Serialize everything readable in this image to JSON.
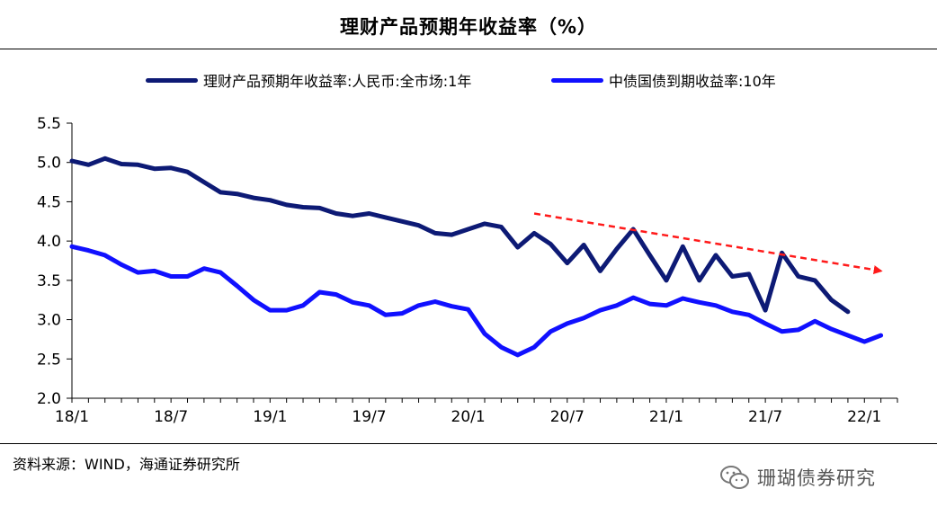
{
  "title": "理财产品预期年收益率（%）",
  "source": "资料来源：WIND，海通证券研究所",
  "watermark": {
    "text": "珊瑚债券研究",
    "icon": "wechat-icon"
  },
  "colors": {
    "series1": "#0d1a75",
    "series2": "#1010ff",
    "trend": "#ff1a1a"
  },
  "chart_data": {
    "type": "line",
    "title": "理财产品预期年收益率（%）",
    "ylim": [
      2.0,
      5.5
    ],
    "yticks": [
      "2.0",
      "2.5",
      "3.0",
      "3.5",
      "4.0",
      "4.5",
      "5.0",
      "5.5"
    ],
    "xlim": [
      "2018-01",
      "2022-03"
    ],
    "xtick_labels": [
      "18/1",
      "18/7",
      "19/1",
      "19/7",
      "20/1",
      "20/7",
      "21/1",
      "21/7",
      "22/1"
    ],
    "grid": false,
    "legend_position": "top",
    "series": [
      {
        "name": "理财产品预期年收益率:人民币:全市场:1年",
        "color": "#0d1a75",
        "points": [
          [
            "2018-01",
            5.02
          ],
          [
            "2018-02",
            4.97
          ],
          [
            "2018-03",
            5.05
          ],
          [
            "2018-04",
            4.98
          ],
          [
            "2018-05",
            4.97
          ],
          [
            "2018-06",
            4.92
          ],
          [
            "2018-07",
            4.93
          ],
          [
            "2018-08",
            4.88
          ],
          [
            "2018-09",
            4.75
          ],
          [
            "2018-10",
            4.62
          ],
          [
            "2018-11",
            4.6
          ],
          [
            "2018-12",
            4.55
          ],
          [
            "2019-01",
            4.52
          ],
          [
            "2019-02",
            4.46
          ],
          [
            "2019-03",
            4.43
          ],
          [
            "2019-04",
            4.42
          ],
          [
            "2019-05",
            4.35
          ],
          [
            "2019-06",
            4.32
          ],
          [
            "2019-07",
            4.35
          ],
          [
            "2019-08",
            4.3
          ],
          [
            "2019-09",
            4.25
          ],
          [
            "2019-10",
            4.2
          ],
          [
            "2019-11",
            4.1
          ],
          [
            "2019-12",
            4.08
          ],
          [
            "2020-01",
            4.15
          ],
          [
            "2020-02",
            4.22
          ],
          [
            "2020-03",
            4.18
          ],
          [
            "2020-04",
            3.92
          ],
          [
            "2020-05",
            4.1
          ],
          [
            "2020-06",
            3.96
          ],
          [
            "2020-07",
            3.72
          ],
          [
            "2020-08",
            3.95
          ],
          [
            "2020-09",
            3.62
          ],
          [
            "2020-10",
            3.9
          ],
          [
            "2020-11",
            4.15
          ],
          [
            "2020-12",
            3.82
          ],
          [
            "2021-01",
            3.5
          ],
          [
            "2021-02",
            3.93
          ],
          [
            "2021-03",
            3.5
          ],
          [
            "2021-04",
            3.82
          ],
          [
            "2021-05",
            3.55
          ],
          [
            "2021-06",
            3.58
          ],
          [
            "2021-07",
            3.12
          ],
          [
            "2021-08",
            3.85
          ],
          [
            "2021-09",
            3.55
          ],
          [
            "2021-10",
            3.5
          ],
          [
            "2021-11",
            3.25
          ],
          [
            "2021-12",
            3.1
          ]
        ]
      },
      {
        "name": "中债国债到期收益率:10年",
        "color": "#1010ff",
        "points": [
          [
            "2018-01",
            3.93
          ],
          [
            "2018-02",
            3.88
          ],
          [
            "2018-03",
            3.82
          ],
          [
            "2018-04",
            3.7
          ],
          [
            "2018-05",
            3.6
          ],
          [
            "2018-06",
            3.62
          ],
          [
            "2018-07",
            3.55
          ],
          [
            "2018-08",
            3.55
          ],
          [
            "2018-09",
            3.65
          ],
          [
            "2018-10",
            3.6
          ],
          [
            "2018-11",
            3.43
          ],
          [
            "2018-12",
            3.25
          ],
          [
            "2019-01",
            3.12
          ],
          [
            "2019-02",
            3.12
          ],
          [
            "2019-03",
            3.18
          ],
          [
            "2019-04",
            3.35
          ],
          [
            "2019-05",
            3.32
          ],
          [
            "2019-06",
            3.22
          ],
          [
            "2019-07",
            3.18
          ],
          [
            "2019-08",
            3.06
          ],
          [
            "2019-09",
            3.08
          ],
          [
            "2019-10",
            3.18
          ],
          [
            "2019-11",
            3.23
          ],
          [
            "2019-12",
            3.17
          ],
          [
            "2020-01",
            3.13
          ],
          [
            "2020-02",
            2.82
          ],
          [
            "2020-03",
            2.65
          ],
          [
            "2020-04",
            2.55
          ],
          [
            "2020-05",
            2.65
          ],
          [
            "2020-06",
            2.85
          ],
          [
            "2020-07",
            2.95
          ],
          [
            "2020-08",
            3.02
          ],
          [
            "2020-09",
            3.12
          ],
          [
            "2020-10",
            3.18
          ],
          [
            "2020-11",
            3.28
          ],
          [
            "2020-12",
            3.2
          ],
          [
            "2021-01",
            3.18
          ],
          [
            "2021-02",
            3.27
          ],
          [
            "2021-03",
            3.22
          ],
          [
            "2021-04",
            3.18
          ],
          [
            "2021-05",
            3.1
          ],
          [
            "2021-06",
            3.06
          ],
          [
            "2021-07",
            2.95
          ],
          [
            "2021-08",
            2.85
          ],
          [
            "2021-09",
            2.87
          ],
          [
            "2021-10",
            2.98
          ],
          [
            "2021-11",
            2.88
          ],
          [
            "2021-12",
            2.8
          ],
          [
            "2022-01",
            2.72
          ],
          [
            "2022-02",
            2.8
          ]
        ]
      }
    ],
    "annotations": [
      {
        "type": "arrow",
        "style": "dashed",
        "color": "#ff1a1a",
        "from": [
          "2020-05",
          4.35
        ],
        "to": [
          "2022-02",
          3.62
        ]
      }
    ]
  }
}
